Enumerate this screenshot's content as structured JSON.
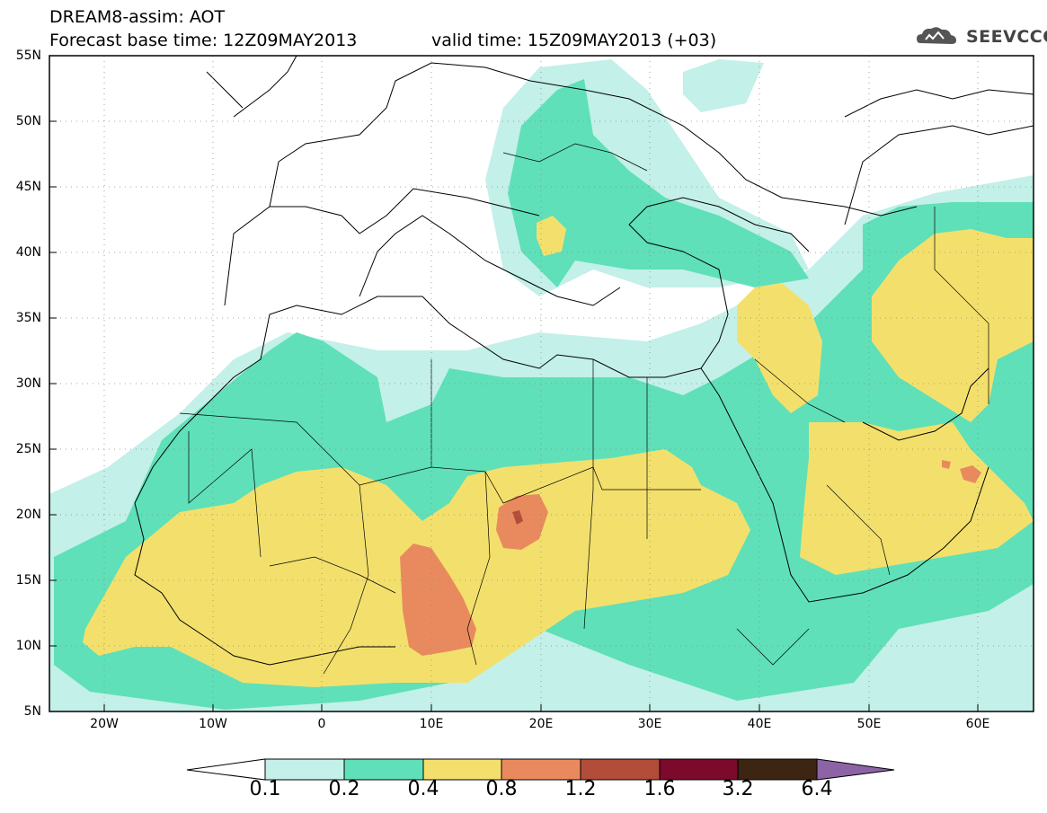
{
  "header": {
    "line1": "DREAM8-assim: AOT",
    "line2": "Forecast base time: 12Z09MAY2013",
    "line2b": "valid time: 15Z09MAY2013 (+03)",
    "logo_text": "SEEVCCC"
  },
  "map": {
    "lat_range": [
      5,
      55
    ],
    "lon_range": [
      -25,
      65
    ],
    "lat_labels": [
      "55N",
      "50N",
      "45N",
      "40N",
      "35N",
      "30N",
      "25N",
      "20N",
      "15N",
      "10N",
      "5N"
    ],
    "lon_labels": [
      "20W",
      "10W",
      "0",
      "10E",
      "20E",
      "30E",
      "40E",
      "50E",
      "60E"
    ]
  },
  "colorbar": {
    "labels": [
      "0.1",
      "0.2",
      "0.4",
      "0.8",
      "1.2",
      "1.6",
      "3.2",
      "6.4"
    ],
    "colors": {
      "lt01": "#ffffff",
      "b01_02": "#c3f0e8",
      "b02_04": "#5fe0b8",
      "b04_08": "#f3e06c",
      "b08_12": "#e98a5e",
      "b12_16": "#b24d3a",
      "b16_32": "#7c0a2b",
      "b32_64": "#3c2512",
      "gt64": "#8c64a6"
    }
  }
}
